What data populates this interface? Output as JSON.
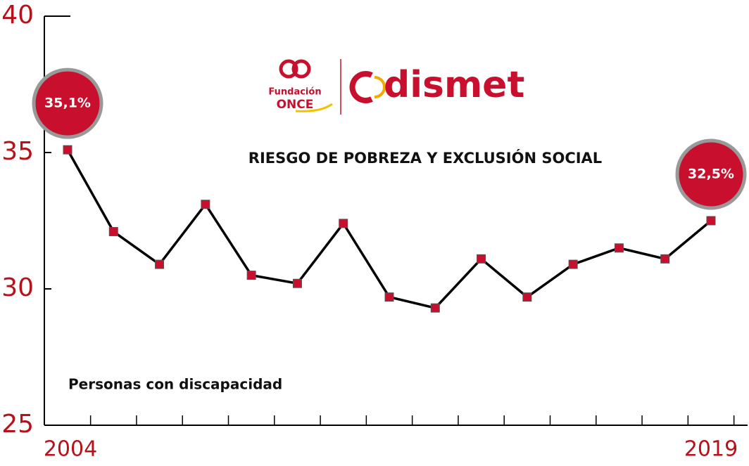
{
  "chart_data": {
    "type": "line",
    "title": "RIESGO DE POBREZA Y EXCLUSIÓN SOCIAL",
    "logo": {
      "foundation": [
        "Fundación",
        "ONCE"
      ],
      "brand": "dismet"
    },
    "categories": [
      "2004",
      null,
      null,
      null,
      null,
      null,
      null,
      null,
      null,
      null,
      null,
      null,
      null,
      null,
      "2019"
    ],
    "series": [
      {
        "name": "Personas con discapacidad",
        "color": "#000000",
        "marker_color": "#c8102e",
        "values": [
          35.1,
          32.1,
          30.9,
          33.1,
          30.5,
          30.2,
          32.4,
          29.7,
          29.3,
          31.1,
          29.7,
          30.9,
          31.5,
          31.1,
          32.5
        ],
        "value_labels": [
          "35,1%",
          null,
          null,
          null,
          null,
          null,
          null,
          null,
          null,
          null,
          null,
          null,
          null,
          null,
          "32,5%"
        ]
      }
    ],
    "ylim": [
      25,
      40
    ],
    "yticks": [
      25,
      30,
      35,
      40
    ],
    "grid": false
  }
}
